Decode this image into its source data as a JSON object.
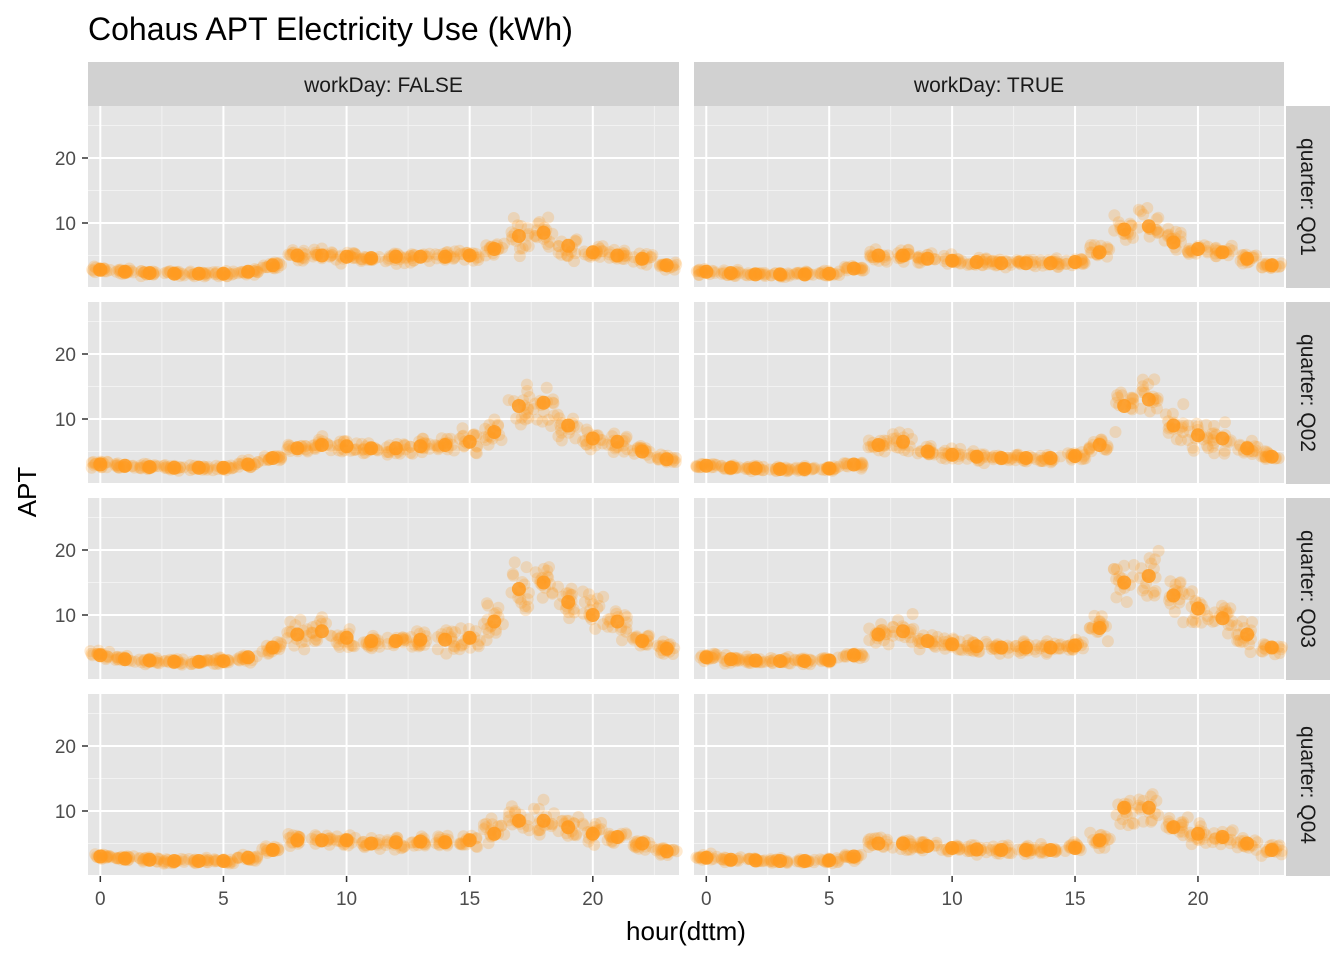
{
  "chart_data": {
    "type": "scatter",
    "title": "Cohaus APT Electricity Use (kWh)",
    "xlabel": "hour(dttm)",
    "ylabel": "APT",
    "xlim": [
      -0.5,
      23.5
    ],
    "ylim": [
      0,
      28
    ],
    "x_ticks": [
      0,
      5,
      10,
      15,
      20
    ],
    "y_ticks": [
      10,
      20
    ],
    "grid": true,
    "point_color": "#FF9A1E",
    "panel_background": "#E5E5E5",
    "strip_background": "#D1D1D1",
    "columns": [
      "workDay: FALSE",
      "workDay: TRUE"
    ],
    "rows": [
      "quarter: Q01",
      "quarter: Q02",
      "quarter: Q03",
      "quarter: Q04"
    ],
    "x": [
      0,
      1,
      2,
      3,
      4,
      5,
      6,
      7,
      8,
      9,
      10,
      11,
      12,
      13,
      14,
      15,
      16,
      17,
      18,
      19,
      20,
      21,
      22,
      23
    ],
    "series": [
      {
        "workDay": "FALSE",
        "quarter": "Q01",
        "values": [
          2.8,
          2.5,
          2.3,
          2.2,
          2.2,
          2.2,
          2.5,
          3.5,
          5.0,
          5.0,
          4.8,
          4.6,
          4.8,
          4.8,
          4.8,
          5.0,
          6.0,
          8.0,
          8.5,
          6.5,
          5.5,
          5.0,
          4.5,
          3.5
        ]
      },
      {
        "workDay": "FALSE",
        "quarter": "Q02",
        "values": [
          3.0,
          2.8,
          2.6,
          2.5,
          2.5,
          2.5,
          3.0,
          4.0,
          5.5,
          6.0,
          5.8,
          5.5,
          5.5,
          5.8,
          6.0,
          6.5,
          8.0,
          12.0,
          12.5,
          9.0,
          7.0,
          6.5,
          5.0,
          3.8
        ]
      },
      {
        "workDay": "FALSE",
        "quarter": "Q03",
        "values": [
          3.8,
          3.2,
          3.0,
          2.8,
          2.8,
          2.9,
          3.5,
          5.0,
          7.0,
          7.5,
          6.5,
          6.0,
          6.0,
          6.2,
          6.2,
          6.5,
          9.0,
          14.0,
          15.0,
          12.0,
          10.0,
          9.0,
          6.0,
          4.8
        ]
      },
      {
        "workDay": "FALSE",
        "quarter": "Q04",
        "values": [
          3.0,
          2.7,
          2.5,
          2.3,
          2.3,
          2.3,
          2.8,
          4.0,
          5.5,
          5.5,
          5.5,
          5.0,
          5.2,
          5.3,
          5.2,
          5.5,
          6.5,
          8.5,
          8.5,
          7.5,
          6.5,
          6.0,
          5.0,
          3.8
        ]
      },
      {
        "workDay": "TRUE",
        "quarter": "Q01",
        "values": [
          2.5,
          2.3,
          2.1,
          2.1,
          2.1,
          2.2,
          3.0,
          5.0,
          5.0,
          4.5,
          4.2,
          4.0,
          3.8,
          3.8,
          3.8,
          4.0,
          5.5,
          9.0,
          9.5,
          7.0,
          6.0,
          5.5,
          4.5,
          3.5
        ]
      },
      {
        "workDay": "TRUE",
        "quarter": "Q02",
        "values": [
          2.8,
          2.5,
          2.4,
          2.3,
          2.3,
          2.4,
          3.0,
          6.0,
          6.5,
          5.0,
          4.5,
          4.2,
          4.0,
          4.0,
          4.0,
          4.3,
          6.0,
          12.0,
          13.0,
          9.0,
          7.5,
          7.0,
          5.5,
          4.2
        ]
      },
      {
        "workDay": "TRUE",
        "quarter": "Q03",
        "values": [
          3.5,
          3.2,
          3.0,
          2.9,
          2.9,
          3.0,
          3.8,
          7.0,
          7.5,
          6.0,
          5.5,
          5.2,
          5.0,
          5.0,
          5.0,
          5.3,
          8.0,
          15.0,
          16.0,
          13.0,
          11.0,
          9.5,
          7.0,
          5.0
        ]
      },
      {
        "workDay": "TRUE",
        "quarter": "Q04",
        "values": [
          2.8,
          2.5,
          2.4,
          2.3,
          2.3,
          2.4,
          3.0,
          5.0,
          5.0,
          4.6,
          4.3,
          4.1,
          4.0,
          4.0,
          4.0,
          4.3,
          5.5,
          10.5,
          10.5,
          7.5,
          6.5,
          6.0,
          5.0,
          4.0
        ]
      }
    ]
  }
}
